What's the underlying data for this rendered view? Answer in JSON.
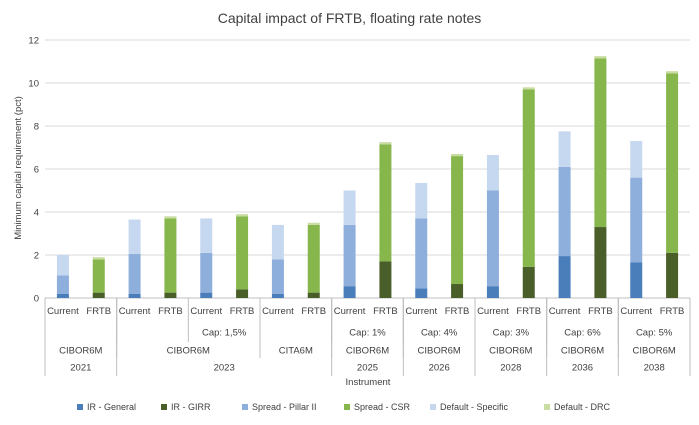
{
  "chart_data": {
    "type": "bar",
    "stacked": true,
    "title": "Capital impact of FRTB, floating rate notes",
    "xlabel": "Instrument",
    "ylabel": "Minimum capital requirement (pct)",
    "ylim": [
      0,
      12
    ],
    "yticks": [
      "0",
      "2",
      "4",
      "6",
      "8",
      "10",
      "12"
    ],
    "grid": true,
    "legend_position": "bottom",
    "categories": [
      "Current",
      "FRTB",
      "Current",
      "FRTB",
      "Current",
      "FRTB",
      "Current",
      "FRTB",
      "Current",
      "FRTB",
      "Current",
      "FRTB",
      "Current",
      "FRTB",
      "Current",
      "FRTB",
      "Current",
      "FRTB",
      "Current",
      "FRTB",
      "Current",
      "FRTB",
      "Current",
      "FRTB"
    ],
    "sub_labels": [
      {
        "label": "",
        "span": 2
      },
      {
        "label": "",
        "span": 2
      },
      {
        "label": "Cap: 1,5%",
        "span": 2
      },
      {
        "label": "",
        "span": 2
      },
      {
        "label": "Cap: 1%",
        "span": 2
      },
      {
        "label": "Cap: 4%",
        "span": 2
      },
      {
        "label": "Cap: 3%",
        "span": 2
      },
      {
        "label": "Cap: 6%",
        "span": 2
      },
      {
        "label": "Cap: 5%",
        "span": 2
      }
    ],
    "instrument_labels": [
      {
        "label": "CIBOR6M",
        "span": 2
      },
      {
        "label": "CIBOR6M",
        "span": 4
      },
      {
        "label": "CITA6M",
        "span": 2
      },
      {
        "label": "CIBOR6M",
        "span": 2
      },
      {
        "label": "CIBOR6M",
        "span": 2
      },
      {
        "label": "CIBOR6M",
        "span": 2
      },
      {
        "label": "CIBOR6M",
        "span": 2
      },
      {
        "label": "CIBOR6M",
        "span": 2
      }
    ],
    "year_labels": [
      {
        "label": "2021",
        "span": 2
      },
      {
        "label": "2023",
        "span": 6
      },
      {
        "label": "2025",
        "span": 2
      },
      {
        "label": "2026",
        "span": 2
      },
      {
        "label": "2028",
        "span": 2
      },
      {
        "label": "2036",
        "span": 2
      },
      {
        "label": "2038",
        "span": 2
      }
    ],
    "series": [
      {
        "name": "IR - General",
        "color": "#4a7ebb",
        "values": [
          0.2,
          0,
          0.2,
          0,
          0.25,
          0,
          0.2,
          0,
          0.55,
          0,
          0.45,
          0,
          0.55,
          0,
          1.95,
          0,
          1.65,
          0,
          0,
          0,
          0,
          0,
          0,
          0
        ]
      },
      {
        "name": "IR - GIRR",
        "color": "#4a5e2a",
        "values": [
          0,
          0.25,
          0,
          0.25,
          0,
          0.4,
          0,
          0.25,
          0,
          1.7,
          0,
          0.65,
          0,
          1.45,
          0,
          3.3,
          0,
          2.1,
          0,
          0,
          0,
          0,
          0,
          0
        ]
      },
      {
        "name": "Spread - Pillar II",
        "color": "#8eaedc",
        "values": [
          0.85,
          0,
          1.85,
          0,
          1.85,
          0,
          1.6,
          0,
          2.85,
          0,
          3.25,
          0,
          4.45,
          0,
          4.15,
          0,
          3.95,
          0,
          0,
          0,
          0,
          0,
          0,
          0
        ]
      },
      {
        "name": "Spread - CSR",
        "color": "#86b64c",
        "values": [
          0,
          1.55,
          0,
          3.45,
          0,
          3.4,
          0,
          3.15,
          0,
          5.45,
          0,
          5.95,
          0,
          8.25,
          0,
          7.85,
          0,
          8.35,
          0,
          0,
          0,
          0,
          0,
          0
        ]
      },
      {
        "name": "Default - Specific",
        "color": "#c6d8ef",
        "values": [
          0.95,
          0,
          1.6,
          0,
          1.6,
          0,
          1.6,
          0,
          1.6,
          0,
          1.65,
          0,
          1.65,
          0,
          1.65,
          0,
          1.7,
          0,
          0,
          0,
          0,
          0,
          0,
          0
        ]
      },
      {
        "name": "Default - DRC",
        "color": "#c9dca2",
        "values": [
          0,
          0.1,
          0,
          0.1,
          0,
          0.1,
          0,
          0.1,
          0,
          0.1,
          0,
          0.1,
          0,
          0.1,
          0,
          0.1,
          0,
          0.1,
          0,
          0,
          0,
          0,
          0,
          0
        ]
      }
    ]
  }
}
